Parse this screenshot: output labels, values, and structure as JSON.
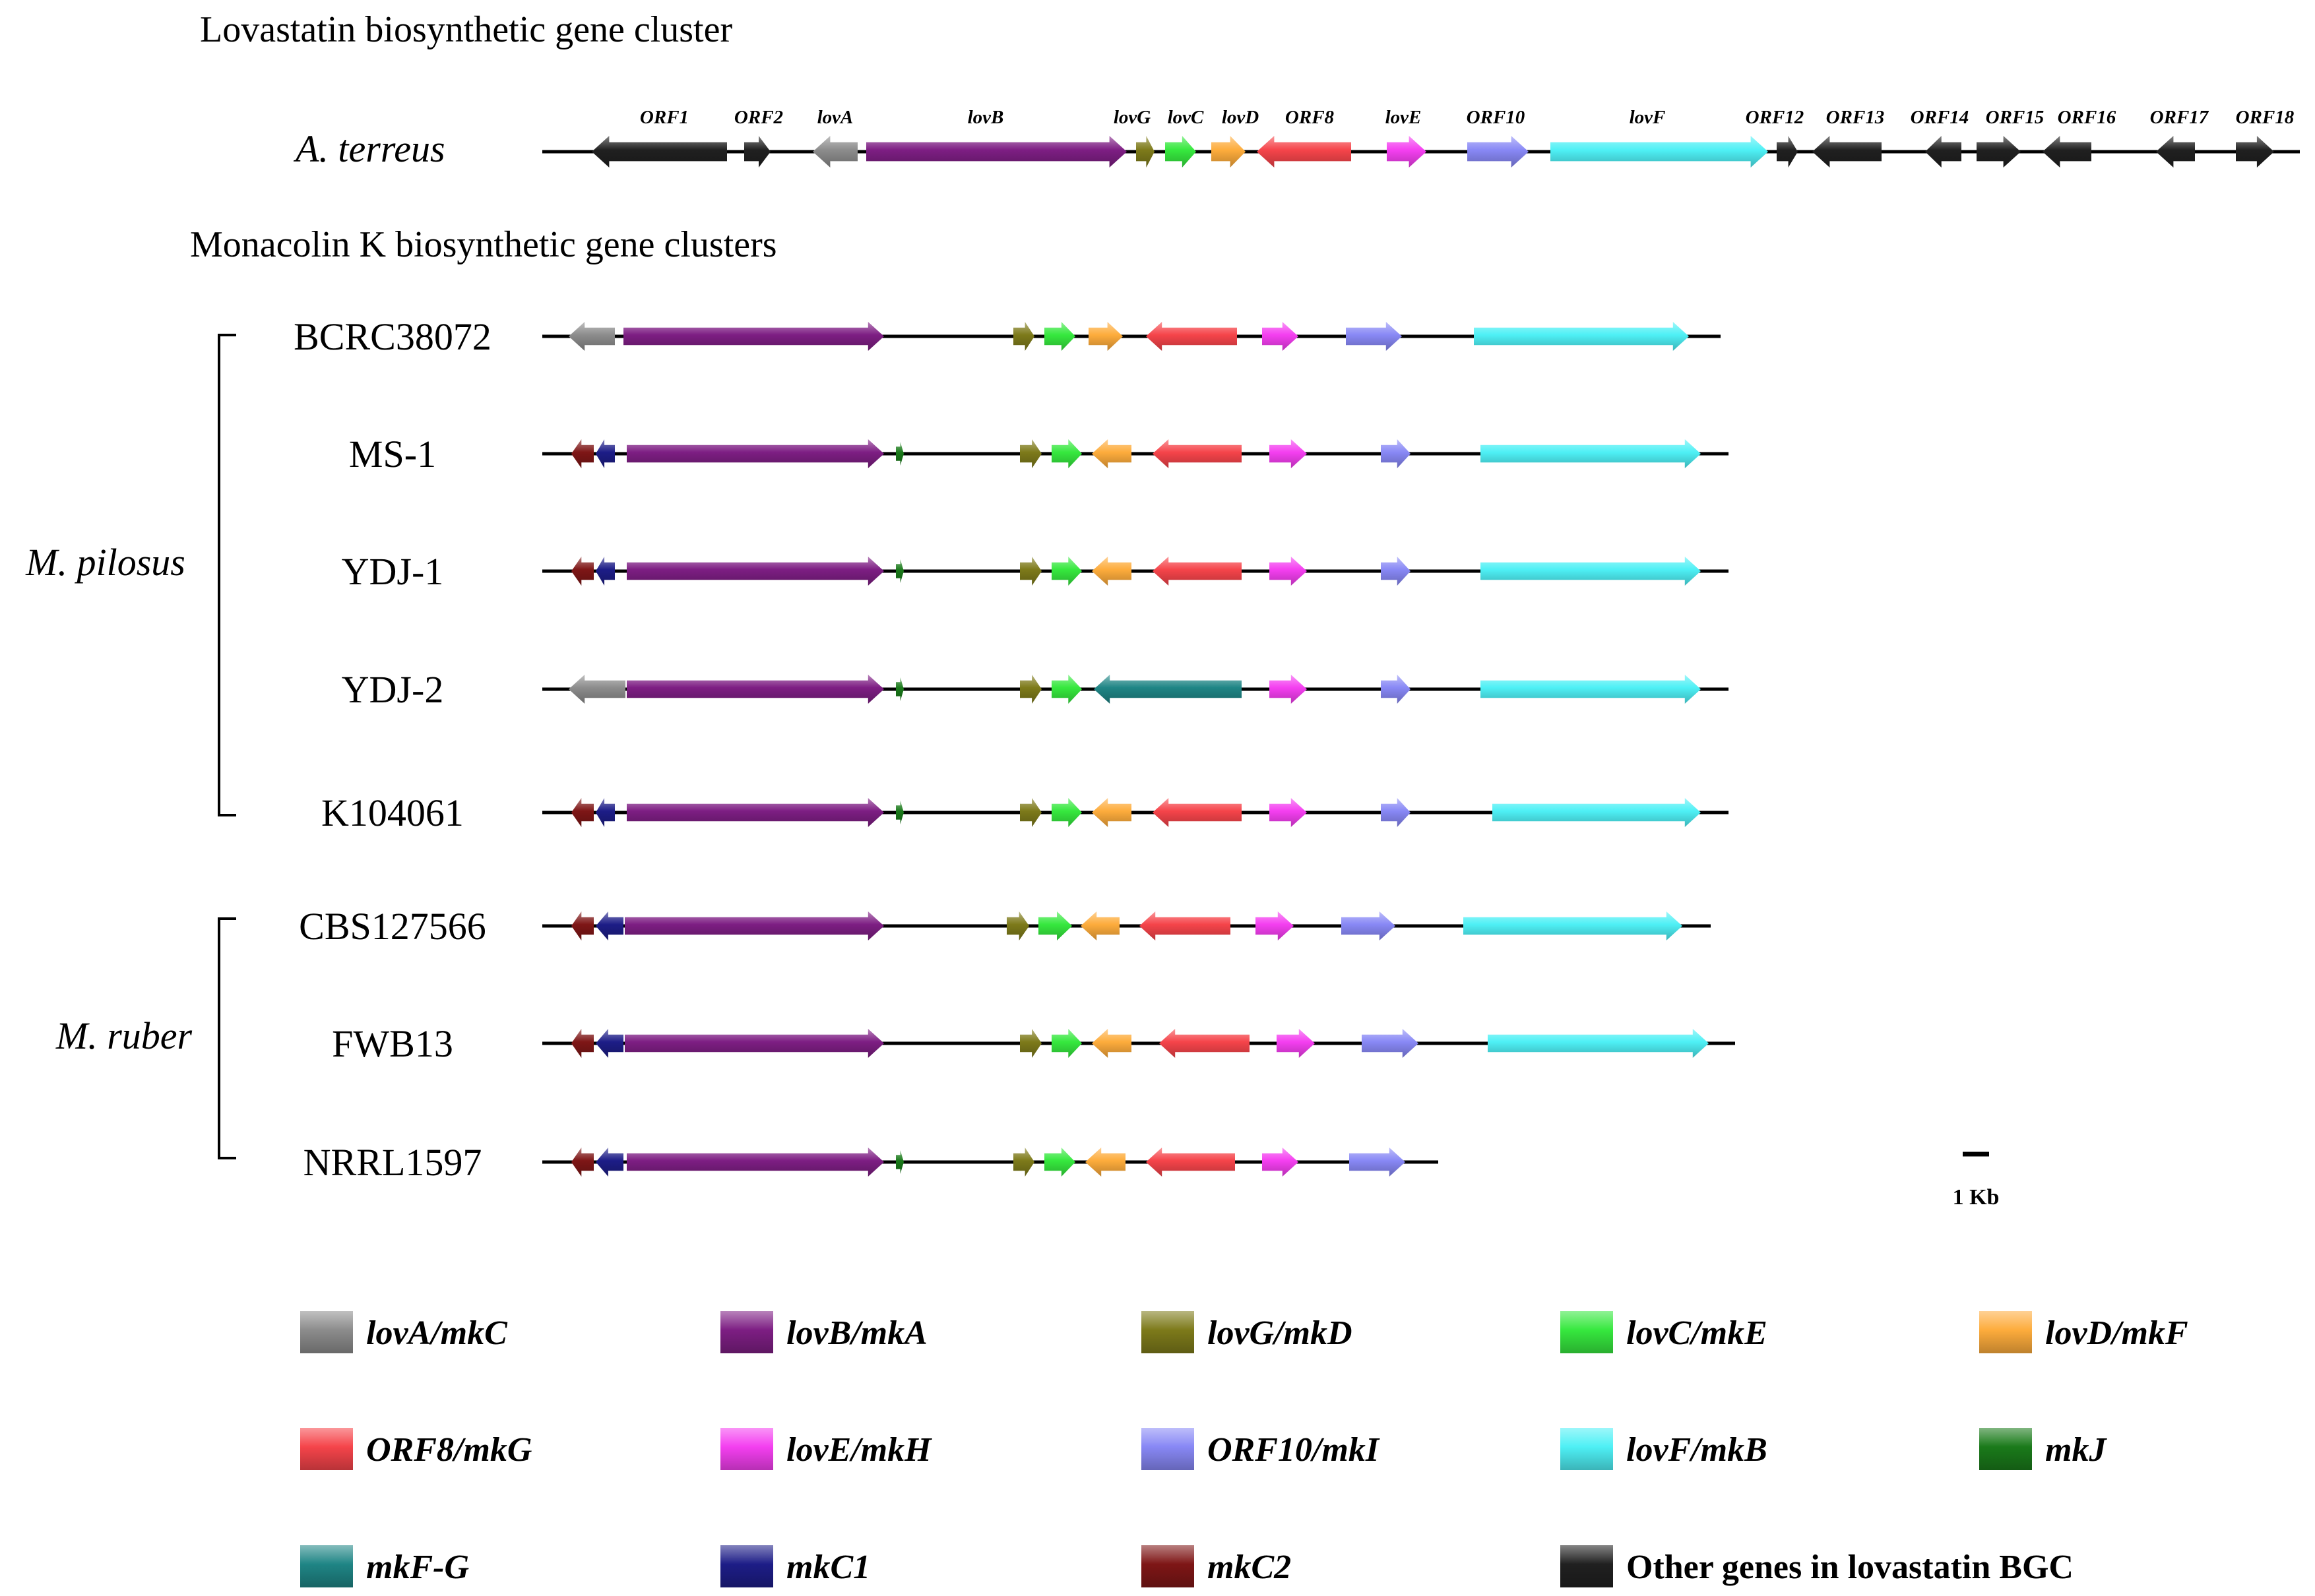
{
  "titles": {
    "lovastatin": "Lovastatin biosynthetic gene cluster",
    "monacolin": "Monacolin K biosynthetic gene clusters"
  },
  "scale_bar_label": "1 Kb",
  "colors": {
    "lovA": "#8c8c8c",
    "lovB": "#7d1e83",
    "lovG": "#7d7a1a",
    "lovC": "#36e83e",
    "lovD": "#fdac3c",
    "ORF8": "#f5444a",
    "lovE": "#f43ff0",
    "ORF10": "#8888f5",
    "lovF": "#4ef0f5",
    "mkJ": "#1a7a1a",
    "mkFG": "#1f8585",
    "mkC1": "#1d1d87",
    "mkC2": "#7e1616",
    "other": "#202020"
  },
  "reference": {
    "organism": "A. terreus",
    "gene_labels": [
      {
        "id": "ORF1",
        "text": "ORF1"
      },
      {
        "id": "ORF2",
        "text": "ORF2"
      },
      {
        "id": "lovA",
        "text": "lovA"
      },
      {
        "id": "lovB",
        "text": "lovB"
      },
      {
        "id": "lovG",
        "text": "lovG"
      },
      {
        "id": "lovC",
        "text": "lovC"
      },
      {
        "id": "lovD",
        "text": "lovD"
      },
      {
        "id": "ORF8",
        "text": "ORF8"
      },
      {
        "id": "lovE",
        "text": "lovE"
      },
      {
        "id": "ORF10",
        "text": "ORF10"
      },
      {
        "id": "lovF",
        "text": "lovF"
      },
      {
        "id": "ORF12",
        "text": "ORF12"
      },
      {
        "id": "ORF13",
        "text": "ORF13"
      },
      {
        "id": "ORF14",
        "text": "ORF14"
      },
      {
        "id": "ORF15",
        "text": "ORF15"
      },
      {
        "id": "ORF16",
        "text": "ORF16"
      },
      {
        "id": "ORF17",
        "text": "ORF17"
      },
      {
        "id": "ORF18",
        "text": "ORF18"
      }
    ]
  },
  "groups": [
    {
      "id": "pilosus",
      "name": "M. pilosus"
    },
    {
      "id": "ruber",
      "name": "M. ruber"
    }
  ],
  "strains": [
    {
      "id": "BCRC38072",
      "name": "BCRC38072",
      "group": "pilosus",
      "genes": [
        "lovA",
        "lovB",
        "lovG",
        "lovC",
        "lovD",
        "ORF8",
        "lovE",
        "ORF10",
        "lovF"
      ]
    },
    {
      "id": "MS-1",
      "name": "MS-1",
      "group": "pilosus",
      "genes": [
        "mkC2",
        "mkC1",
        "lovB",
        "mkJ",
        "lovG",
        "lovC",
        "lovD",
        "ORF8",
        "lovE",
        "ORF10",
        "lovF"
      ]
    },
    {
      "id": "YDJ-1",
      "name": "YDJ-1",
      "group": "pilosus",
      "genes": [
        "mkC2",
        "mkC1",
        "lovB",
        "mkJ",
        "lovG",
        "lovC",
        "lovD",
        "ORF8",
        "lovE",
        "ORF10",
        "lovF"
      ]
    },
    {
      "id": "YDJ-2",
      "name": "YDJ-2",
      "group": "pilosus",
      "genes": [
        "lovA",
        "lovB",
        "mkJ",
        "lovG",
        "lovC",
        "mkFG",
        "lovE",
        "ORF10",
        "lovF"
      ]
    },
    {
      "id": "K104061",
      "name": "K104061",
      "group": "pilosus",
      "genes": [
        "mkC2",
        "mkC1",
        "lovB",
        "mkJ",
        "lovG",
        "lovC",
        "lovD",
        "ORF8",
        "lovE",
        "ORF10",
        "lovF"
      ]
    },
    {
      "id": "CBS127566",
      "name": "CBS127566",
      "group": "ruber",
      "genes": [
        "mkC2",
        "mkC1",
        "lovB",
        "lovG",
        "lovC",
        "lovD",
        "ORF8",
        "lovE",
        "ORF10",
        "lovF"
      ]
    },
    {
      "id": "FWB13",
      "name": "FWB13",
      "group": "ruber",
      "genes": [
        "mkC2",
        "mkC1",
        "lovB",
        "lovG",
        "lovC",
        "lovD",
        "ORF8",
        "lovE",
        "ORF10",
        "lovF"
      ]
    },
    {
      "id": "NRRL1597",
      "name": "NRRL1597",
      "group": "ruber",
      "genes": [
        "mkC2",
        "mkC1",
        "lovB",
        "mkJ",
        "lovG",
        "lovC",
        "lovD",
        "ORF8",
        "lovE",
        "ORF10"
      ]
    }
  ],
  "legend": [
    {
      "key": "lovA",
      "label": "lovA/mkC",
      "italic": true
    },
    {
      "key": "lovB",
      "label": "lovB/mkA",
      "italic": true
    },
    {
      "key": "lovG",
      "label": "lovG/mkD",
      "italic": true
    },
    {
      "key": "lovC",
      "label": "lovC/mkE",
      "italic": true
    },
    {
      "key": "lovD",
      "label": "lovD/mkF",
      "italic": true
    },
    {
      "key": "ORF8",
      "label": "ORF8/mkG",
      "italic": true
    },
    {
      "key": "lovE",
      "label": "lovE/mkH",
      "italic": true
    },
    {
      "key": "ORF10",
      "label": "ORF10/mkI",
      "italic": true
    },
    {
      "key": "lovF",
      "label": "lovF/mkB",
      "italic": true
    },
    {
      "key": "mkJ",
      "label": "mkJ",
      "italic": true
    },
    {
      "key": "mkFG",
      "label": "mkF-G",
      "italic": true
    },
    {
      "key": "mkC1",
      "label": "mkC1",
      "italic": true
    },
    {
      "key": "mkC2",
      "label": "mkC2",
      "italic": true
    },
    {
      "key": "other",
      "label": "Other genes in lovastatin BGC",
      "italic": false
    }
  ]
}
